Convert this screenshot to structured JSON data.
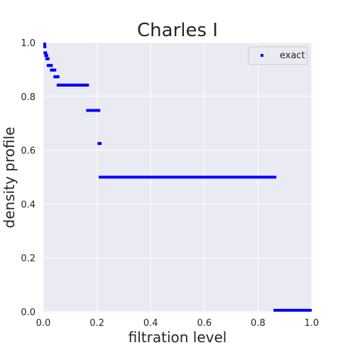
{
  "chart_data": {
    "type": "scatter",
    "title": "Charles I",
    "xlabel": "filtration level",
    "ylabel": "density profile",
    "xlim": [
      0.0,
      1.0
    ],
    "ylim": [
      0.0,
      1.0
    ],
    "xticks": [
      "0.0",
      "0.2",
      "0.4",
      "0.6",
      "0.8",
      "1.0"
    ],
    "yticks": [
      "0.0",
      "0.2",
      "0.4",
      "0.6",
      "0.8",
      "1.0"
    ],
    "grid": true,
    "legend": {
      "position": "top-right",
      "entries": [
        "exact"
      ]
    },
    "series": [
      {
        "name": "exact",
        "color": "#0000ff",
        "marker": "square",
        "segments": [
          {
            "x_start": 0.0,
            "x_end": 0.003,
            "y": 1.0
          },
          {
            "x_start": 0.003,
            "x_end": 0.006,
            "y": 0.985
          },
          {
            "x_start": 0.006,
            "x_end": 0.009,
            "y": 0.962
          },
          {
            "x_start": 0.009,
            "x_end": 0.013,
            "y": 0.952
          },
          {
            "x_start": 0.013,
            "x_end": 0.018,
            "y": 0.94
          },
          {
            "x_start": 0.018,
            "x_end": 0.03,
            "y": 0.915
          },
          {
            "x_start": 0.03,
            "x_end": 0.043,
            "y": 0.898
          },
          {
            "x_start": 0.043,
            "x_end": 0.055,
            "y": 0.873
          },
          {
            "x_start": 0.055,
            "x_end": 0.165,
            "y": 0.842
          },
          {
            "x_start": 0.165,
            "x_end": 0.207,
            "y": 0.748
          },
          {
            "x_start": 0.207,
            "x_end": 0.212,
            "y": 0.625
          },
          {
            "x_start": 0.212,
            "x_end": 0.863,
            "y": 0.5
          },
          {
            "x_start": 0.863,
            "x_end": 1.0,
            "y": 0.0
          }
        ]
      }
    ]
  }
}
